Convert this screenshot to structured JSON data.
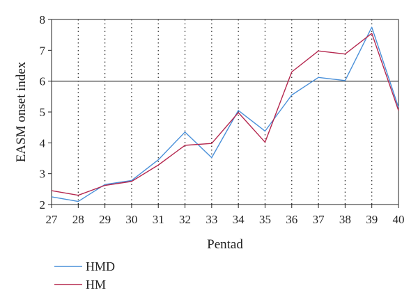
{
  "chart_data": {
    "type": "line",
    "title": "",
    "xlabel": "Pentad",
    "ylabel": "EASM onset index",
    "x": [
      27,
      28,
      29,
      30,
      31,
      32,
      33,
      34,
      35,
      36,
      37,
      38,
      39,
      40
    ],
    "xlim": [
      27,
      40
    ],
    "ylim": [
      2,
      8
    ],
    "yticks": [
      2,
      3,
      4,
      5,
      6,
      7,
      8
    ],
    "xticks": [
      27,
      28,
      29,
      30,
      31,
      32,
      33,
      34,
      35,
      36,
      37,
      38,
      39,
      40
    ],
    "vertical_grid": "dotted",
    "reference_line": 6,
    "legend_placement": "bottom-left",
    "series": [
      {
        "name": "HMD",
        "color": "#4a90d9",
        "values": [
          2.25,
          2.1,
          2.65,
          2.78,
          3.45,
          4.35,
          3.52,
          5.05,
          4.38,
          5.55,
          6.12,
          6.02,
          7.75,
          5.15
        ]
      },
      {
        "name": "HM",
        "color": "#b5284f",
        "values": [
          2.45,
          2.3,
          2.62,
          2.75,
          3.28,
          3.92,
          3.98,
          4.98,
          4.02,
          6.3,
          6.98,
          6.88,
          7.55,
          5.05
        ]
      }
    ]
  }
}
